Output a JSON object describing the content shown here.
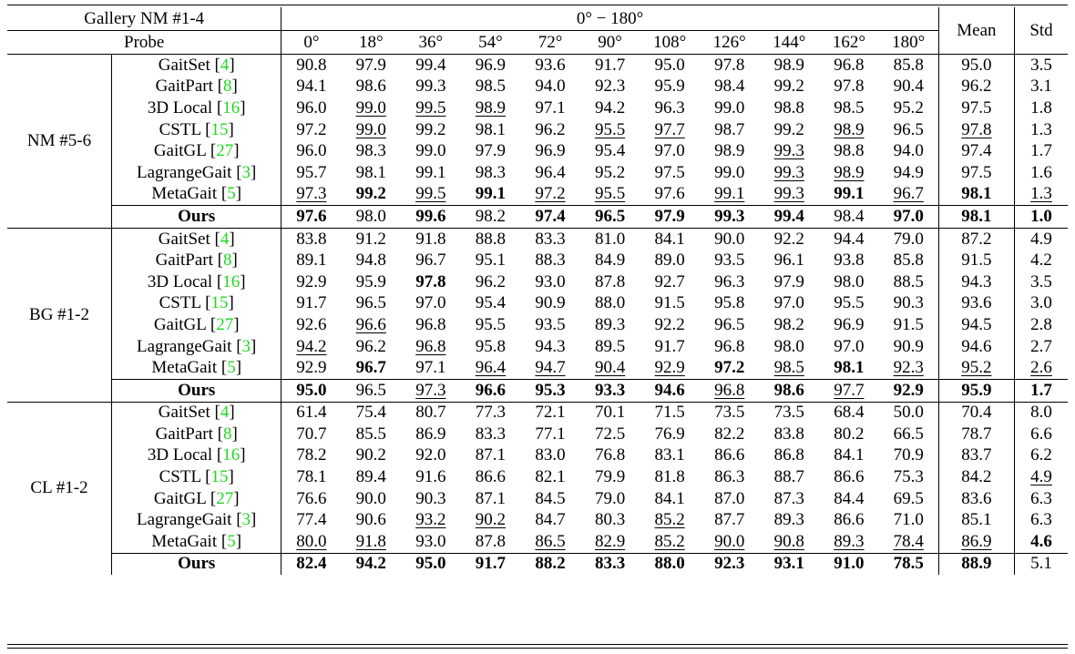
{
  "header": {
    "gallery": "Gallery NM #1-4",
    "probe": "Probe",
    "range": "0° − 180°",
    "mean": "Mean",
    "std": "Std",
    "angles": [
      "0°",
      "18°",
      "36°",
      "54°",
      "72°",
      "90°",
      "108°",
      "126°",
      "144°",
      "162°",
      "180°"
    ]
  },
  "groups": [
    {
      "condition": "NM #5-6",
      "rows": [
        {
          "method": "GaitSet",
          "ref": "4",
          "values": [
            "90.8",
            "97.9",
            "99.4",
            "96.9",
            "93.6",
            "91.7",
            "95.0",
            "97.8",
            "98.9",
            "96.8",
            "85.8"
          ],
          "mean": "95.0",
          "std": "3.5",
          "bold": [],
          "under": []
        },
        {
          "method": "GaitPart",
          "ref": "8",
          "values": [
            "94.1",
            "98.6",
            "99.3",
            "98.5",
            "94.0",
            "92.3",
            "95.9",
            "98.4",
            "99.2",
            "97.8",
            "90.4"
          ],
          "mean": "96.2",
          "std": "3.1",
          "bold": [],
          "under": []
        },
        {
          "method": "3D Local",
          "ref": "16",
          "values": [
            "96.0",
            "99.0",
            "99.5",
            "98.9",
            "97.1",
            "94.2",
            "96.3",
            "99.0",
            "98.8",
            "98.5",
            "95.2"
          ],
          "mean": "97.5",
          "std": "1.8",
          "bold": [],
          "under": [
            1,
            2,
            3
          ]
        },
        {
          "method": "CSTL",
          "ref": "15",
          "values": [
            "97.2",
            "99.0",
            "99.2",
            "98.1",
            "96.2",
            "95.5",
            "97.7",
            "98.7",
            "99.2",
            "98.9",
            "96.5"
          ],
          "mean": "97.8",
          "std": "1.3",
          "bold": [],
          "under": [
            1,
            5,
            6,
            9,
            11
          ]
        },
        {
          "method": "GaitGL",
          "ref": "27",
          "values": [
            "96.0",
            "98.3",
            "99.0",
            "97.9",
            "96.9",
            "95.4",
            "97.0",
            "98.9",
            "99.3",
            "98.8",
            "94.0"
          ],
          "mean": "97.4",
          "std": "1.7",
          "bold": [],
          "under": [
            8
          ]
        },
        {
          "method": "LagrangeGait",
          "ref": "3",
          "values": [
            "95.7",
            "98.1",
            "99.1",
            "98.3",
            "96.4",
            "95.2",
            "97.5",
            "99.0",
            "99.3",
            "98.9",
            "94.9"
          ],
          "mean": "97.5",
          "std": "1.6",
          "bold": [],
          "under": [
            8,
            9
          ]
        },
        {
          "method": "MetaGait",
          "ref": "5",
          "values": [
            "97.3",
            "99.2",
            "99.5",
            "99.1",
            "97.2",
            "95.5",
            "97.6",
            "99.1",
            "99.3",
            "99.1",
            "96.7"
          ],
          "mean": "98.1",
          "std": "1.3",
          "bold": [
            1,
            3,
            9,
            11
          ],
          "under": [
            0,
            2,
            4,
            5,
            7,
            8,
            10,
            12
          ]
        },
        {
          "method": "Ours",
          "ref": "",
          "values": [
            "97.6",
            "98.0",
            "99.6",
            "98.2",
            "97.4",
            "96.5",
            "97.9",
            "99.3",
            "99.4",
            "98.4",
            "97.0"
          ],
          "mean": "98.1",
          "std": "1.0",
          "bold": [
            0,
            2,
            4,
            5,
            6,
            7,
            8,
            10,
            11,
            12
          ],
          "under": []
        }
      ]
    },
    {
      "condition": "BG #1-2",
      "rows": [
        {
          "method": "GaitSet",
          "ref": "4",
          "values": [
            "83.8",
            "91.2",
            "91.8",
            "88.8",
            "83.3",
            "81.0",
            "84.1",
            "90.0",
            "92.2",
            "94.4",
            "79.0"
          ],
          "mean": "87.2",
          "std": "4.9",
          "bold": [],
          "under": []
        },
        {
          "method": "GaitPart",
          "ref": "8",
          "values": [
            "89.1",
            "94.8",
            "96.7",
            "95.1",
            "88.3",
            "84.9",
            "89.0",
            "93.5",
            "96.1",
            "93.8",
            "85.8"
          ],
          "mean": "91.5",
          "std": "4.2",
          "bold": [],
          "under": []
        },
        {
          "method": "3D Local",
          "ref": "16",
          "values": [
            "92.9",
            "95.9",
            "97.8",
            "96.2",
            "93.0",
            "87.8",
            "92.7",
            "96.3",
            "97.9",
            "98.0",
            "88.5"
          ],
          "mean": "94.3",
          "std": "3.5",
          "bold": [
            2
          ],
          "under": []
        },
        {
          "method": "CSTL",
          "ref": "15",
          "values": [
            "91.7",
            "96.5",
            "97.0",
            "95.4",
            "90.9",
            "88.0",
            "91.5",
            "95.8",
            "97.0",
            "95.5",
            "90.3"
          ],
          "mean": "93.6",
          "std": "3.0",
          "bold": [],
          "under": []
        },
        {
          "method": "GaitGL",
          "ref": "27",
          "values": [
            "92.6",
            "96.6",
            "96.8",
            "95.5",
            "93.5",
            "89.3",
            "92.2",
            "96.5",
            "98.2",
            "96.9",
            "91.5"
          ],
          "mean": "94.5",
          "std": "2.8",
          "bold": [],
          "under": [
            1
          ]
        },
        {
          "method": "LagrangeGait",
          "ref": "3",
          "values": [
            "94.2",
            "96.2",
            "96.8",
            "95.8",
            "94.3",
            "89.5",
            "91.7",
            "96.8",
            "98.0",
            "97.0",
            "90.9"
          ],
          "mean": "94.6",
          "std": "2.7",
          "bold": [],
          "under": [
            0,
            2
          ]
        },
        {
          "method": "MetaGait",
          "ref": "5",
          "values": [
            "92.9",
            "96.7",
            "97.1",
            "96.4",
            "94.7",
            "90.4",
            "92.9",
            "97.2",
            "98.5",
            "98.1",
            "92.3"
          ],
          "mean": "95.2",
          "std": "2.6",
          "bold": [
            1,
            7,
            9
          ],
          "under": [
            3,
            4,
            5,
            6,
            8,
            10,
            11,
            12
          ]
        },
        {
          "method": "Ours",
          "ref": "",
          "values": [
            "95.0",
            "96.5",
            "97.3",
            "96.6",
            "95.3",
            "93.3",
            "94.6",
            "96.8",
            "98.6",
            "97.7",
            "92.9"
          ],
          "mean": "95.9",
          "std": "1.7",
          "bold": [
            0,
            3,
            4,
            5,
            6,
            8,
            10,
            11,
            12
          ],
          "under": [
            2,
            7,
            9
          ]
        }
      ]
    },
    {
      "condition": "CL #1-2",
      "rows": [
        {
          "method": "GaitSet",
          "ref": "4",
          "values": [
            "61.4",
            "75.4",
            "80.7",
            "77.3",
            "72.1",
            "70.1",
            "71.5",
            "73.5",
            "73.5",
            "68.4",
            "50.0"
          ],
          "mean": "70.4",
          "std": "8.0",
          "bold": [],
          "under": []
        },
        {
          "method": "GaitPart",
          "ref": "8",
          "values": [
            "70.7",
            "85.5",
            "86.9",
            "83.3",
            "77.1",
            "72.5",
            "76.9",
            "82.2",
            "83.8",
            "80.2",
            "66.5"
          ],
          "mean": "78.7",
          "std": "6.6",
          "bold": [],
          "under": []
        },
        {
          "method": "3D Local",
          "ref": "16",
          "values": [
            "78.2",
            "90.2",
            "92.0",
            "87.1",
            "83.0",
            "76.8",
            "83.1",
            "86.6",
            "86.8",
            "84.1",
            "70.9"
          ],
          "mean": "83.7",
          "std": "6.2",
          "bold": [],
          "under": []
        },
        {
          "method": "CSTL",
          "ref": "15",
          "values": [
            "78.1",
            "89.4",
            "91.6",
            "86.6",
            "82.1",
            "79.9",
            "81.8",
            "86.3",
            "88.7",
            "86.6",
            "75.3"
          ],
          "mean": "84.2",
          "std": "4.9",
          "bold": [],
          "under": [
            12
          ]
        },
        {
          "method": "GaitGL",
          "ref": "27",
          "values": [
            "76.6",
            "90.0",
            "90.3",
            "87.1",
            "84.5",
            "79.0",
            "84.1",
            "87.0",
            "87.3",
            "84.4",
            "69.5"
          ],
          "mean": "83.6",
          "std": "6.3",
          "bold": [],
          "under": []
        },
        {
          "method": "LagrangeGait",
          "ref": "3",
          "values": [
            "77.4",
            "90.6",
            "93.2",
            "90.2",
            "84.7",
            "80.3",
            "85.2",
            "87.7",
            "89.3",
            "86.6",
            "71.0"
          ],
          "mean": "85.1",
          "std": "6.3",
          "bold": [],
          "under": [
            2,
            3,
            6
          ]
        },
        {
          "method": "MetaGait",
          "ref": "5",
          "values": [
            "80.0",
            "91.8",
            "93.0",
            "87.8",
            "86.5",
            "82.9",
            "85.2",
            "90.0",
            "90.8",
            "89.3",
            "78.4"
          ],
          "mean": "86.9",
          "std": "4.6",
          "bold": [
            12
          ],
          "under": [
            0,
            1,
            4,
            5,
            6,
            7,
            8,
            9,
            10,
            11
          ]
        },
        {
          "method": "Ours",
          "ref": "",
          "values": [
            "82.4",
            "94.2",
            "95.0",
            "91.7",
            "88.2",
            "83.3",
            "88.0",
            "92.3",
            "93.1",
            "91.0",
            "78.5"
          ],
          "mean": "88.9",
          "std": "5.1",
          "bold": [
            0,
            1,
            2,
            3,
            4,
            5,
            6,
            7,
            8,
            9,
            10,
            11
          ],
          "under": []
        }
      ]
    }
  ]
}
